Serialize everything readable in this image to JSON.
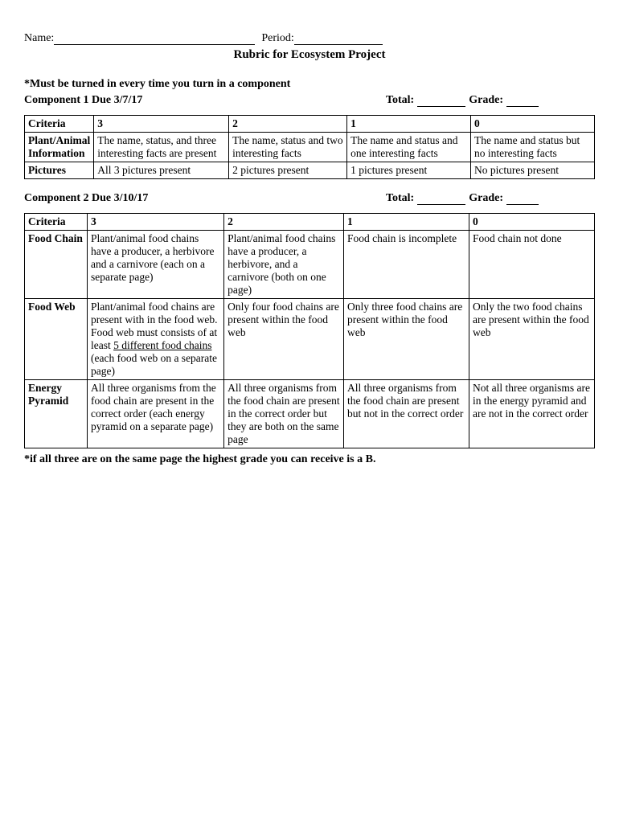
{
  "header": {
    "name_label": "Name:",
    "period_label": "Period:",
    "title": "Rubric for Ecosystem Project"
  },
  "note": "*Must be turned in every time you turn in a component",
  "components": [
    {
      "heading": "Component 1 Due 3/7/17",
      "total_label": "Total:",
      "grade_label": "Grade:",
      "headers": [
        "Criteria",
        "3",
        "2",
        "1",
        "0"
      ],
      "rows": [
        {
          "criteria": "Plant/Animal Information",
          "c3": "The name, status, and three interesting facts are present",
          "c2": "The name, status and two interesting facts",
          "c1": "The name and status and one interesting facts",
          "c0": "The name and status but no interesting facts"
        },
        {
          "criteria": "Pictures",
          "c3": "All 3 pictures present",
          "c2": "2  pictures present",
          "c1": "1 pictures present",
          "c0": "No pictures present"
        }
      ]
    },
    {
      "heading": "Component 2 Due 3/10/17",
      "total_label": "Total:",
      "grade_label": "Grade:",
      "headers": [
        "Criteria",
        "3",
        "2",
        "1",
        "0"
      ],
      "rows": [
        {
          "criteria": "Food Chain",
          "c3": "Plant/animal food chains have a producer, a herbivore and a carnivore (each on a separate page)",
          "c2": "Plant/animal food chains have a producer, a herbivore, and a carnivore (both on one page)",
          "c1": "Food chain is incomplete",
          "c0": "Food chain not done"
        },
        {
          "criteria": "Food Web",
          "c3_pre": "Plant/animal food chains are present with in the food web. Food web must consists of at least ",
          "c3_underline": "5 different food chains",
          "c3_post": " (each food web on a separate page)",
          "c2": "Only four food chains are present within the food web",
          "c1": "Only three food chains are present within the food web",
          "c0": "Only the two food chains are present within the food web"
        },
        {
          "criteria": "Energy Pyramid",
          "c3": "All three organisms from the food chain are present in the correct order (each energy pyramid on a separate page)",
          "c2": "All three organisms from the food chain are present in the correct order but they are both on the same page",
          "c1": "All three organisms from the food chain are present but not in the correct order",
          "c0": "Not all three organisms are in the energy pyramid and are not in the correct order"
        }
      ]
    }
  ],
  "footnote": "*if all three are on the same page the highest grade you can receive is a B."
}
